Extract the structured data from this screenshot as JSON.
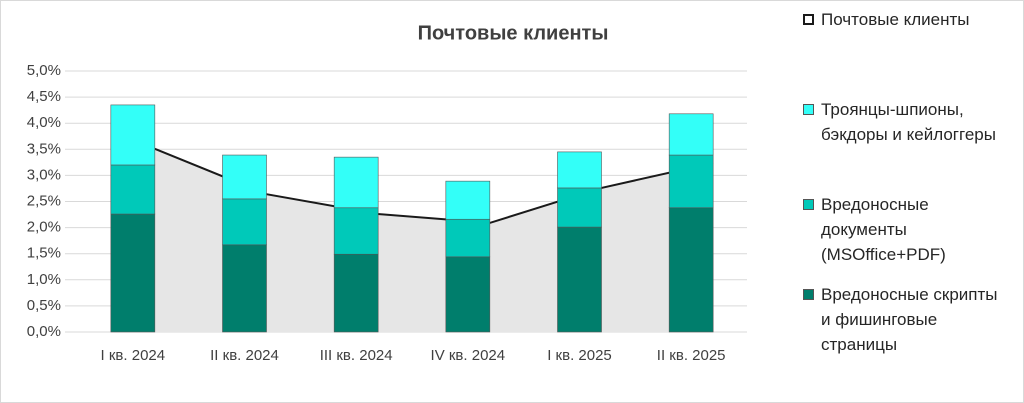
{
  "chart_data": {
    "type": "bar",
    "title": "Почтовые клиенты",
    "categories": [
      "I кв. 2024",
      "II кв. 2024",
      "III кв. 2024",
      "IV кв. 2024",
      "I кв. 2025",
      "II кв. 2025"
    ],
    "series": [
      {
        "name": "Вредоносные скрипты и фишинговые страницы",
        "color": "#007e6c",
        "values": [
          2.26,
          1.67,
          1.49,
          1.44,
          2.01,
          2.38
        ]
      },
      {
        "name": "Вредоносные документы (MSOffice+PDF)",
        "color": "#00c9b9",
        "values": [
          0.94,
          0.88,
          0.89,
          0.72,
          0.75,
          1.01
        ]
      },
      {
        "name": "Троянцы-шпионы, бэкдоры и кейлоггеры",
        "color": "#33fff8",
        "values": [
          1.15,
          0.84,
          0.97,
          0.73,
          0.69,
          0.79
        ]
      },
      {
        "name": "Почтовые клиенты",
        "type": "area",
        "color": "#e6e6e6",
        "line_color": "#1a1a1a",
        "values": [
          3.51,
          2.64,
          2.26,
          2.09,
          2.76,
          3.24
        ]
      }
    ],
    "ylim": [
      0,
      5
    ],
    "yticks": [
      {
        "value": 0,
        "label": "0,0%"
      },
      {
        "value": 0.5,
        "label": "0,5%"
      },
      {
        "value": 1,
        "label": "1,0%"
      },
      {
        "value": 1.5,
        "label": "1,5%"
      },
      {
        "value": 2,
        "label": "2,0%"
      },
      {
        "value": 2.5,
        "label": "2,5%"
      },
      {
        "value": 3,
        "label": "3,0%"
      },
      {
        "value": 3.5,
        "label": "3,5%"
      },
      {
        "value": 4,
        "label": "4,0%"
      },
      {
        "value": 4.5,
        "label": "4,5%"
      },
      {
        "value": 5,
        "label": "5,0%"
      }
    ],
    "grid": true,
    "legend": "right"
  }
}
